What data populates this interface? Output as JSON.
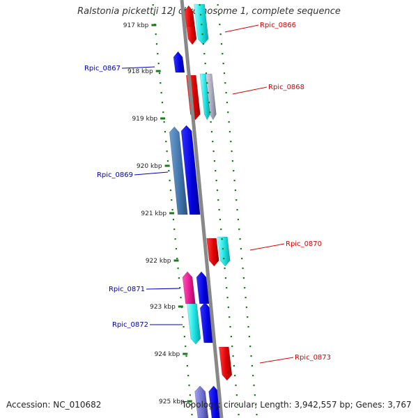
{
  "title": "Ralstonia pickettii 12J chromosome 1, complete sequence",
  "accession": "Accession: NC_010682",
  "summary": "Topology: circular; Length: 3,942,557 bp; Genes: 3,767",
  "ruler": {
    "ticks": [
      "917 kbp",
      "918 kbp",
      "919 kbp",
      "920 kbp",
      "921 kbp",
      "922 kbp",
      "923 kbp",
      "924 kbp",
      "925 kbp"
    ]
  },
  "genes": [
    {
      "label": "Rpic_0866",
      "color": "#dd0000"
    },
    {
      "label": "Rpic_0867",
      "color": "#0000bb"
    },
    {
      "label": "Rpic_0868",
      "color": "#dd0000"
    },
    {
      "label": "Rpic_0869",
      "color": "#0000bb"
    },
    {
      "label": "Rpic_0870",
      "color": "#dd0000"
    },
    {
      "label": "Rpic_0871",
      "color": "#0000bb"
    },
    {
      "label": "Rpic_0872",
      "color": "#0000bb"
    },
    {
      "label": "Rpic_0873",
      "color": "#dd0000"
    }
  ],
  "colors": {
    "forward_strand_label": "#dd0000",
    "reverse_strand_label": "#0000bb",
    "backbone": "#888888",
    "tick_marks": "#1a7a1a"
  }
}
